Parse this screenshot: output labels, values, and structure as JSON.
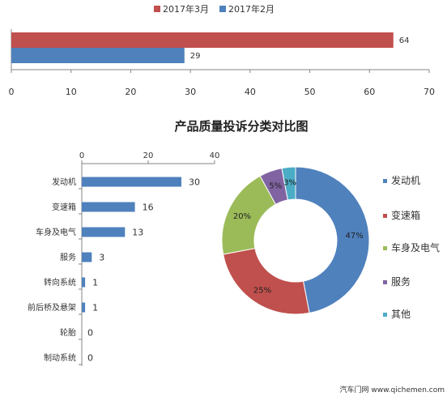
{
  "colors": {
    "march": "#C0504D",
    "feb": "#4F81BD",
    "bar": "#4F81BD",
    "axis": "#868686",
    "text": "#333333",
    "donut": [
      "#4F81BD",
      "#C0504D",
      "#9BBB59",
      "#8064A2",
      "#4BACC6"
    ]
  },
  "chart_data": [
    {
      "type": "bar",
      "orientation": "horizontal",
      "legend_position": "top",
      "series": [
        {
          "name": "2017年3月",
          "values": [
            64
          ]
        },
        {
          "name": "2017年2月",
          "values": [
            29
          ]
        }
      ],
      "xticks": [
        0,
        10,
        20,
        30,
        40,
        50,
        60,
        70
      ],
      "xlim": [
        0,
        70
      ],
      "data_labels": true,
      "grid": false
    },
    {
      "type": "bar",
      "orientation": "horizontal",
      "title": "产品质量投诉分类对比图",
      "categories": [
        "发动机",
        "变速箱",
        "车身及电气",
        "服务",
        "转向系统",
        "前后桥及悬架",
        "轮胎",
        "制动系统"
      ],
      "values": [
        30,
        16,
        13,
        3,
        1,
        1,
        0,
        0
      ],
      "xticks": [
        0,
        20,
        40
      ],
      "xlim": [
        0,
        40
      ],
      "axis_position": "top",
      "data_labels": true,
      "grid": false
    },
    {
      "type": "pie",
      "style": "donut",
      "categories": [
        "发动机",
        "变速箱",
        "车身及电气",
        "服务",
        "其他"
      ],
      "values": [
        47,
        25,
        20,
        5,
        3
      ],
      "value_labels": [
        "47%",
        "25%",
        "20%",
        "5%",
        "3%"
      ],
      "legend_position": "right"
    }
  ],
  "watermark": "汽车门网 www.qichemen.com"
}
